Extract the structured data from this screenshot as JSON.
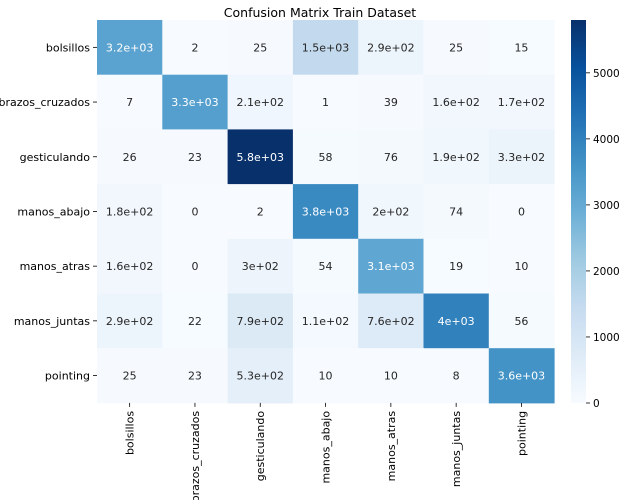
{
  "chart_data": {
    "type": "heatmap",
    "title": "Confusion Matrix Train Dataset",
    "rows": [
      "bolsillos",
      "brazos_cruzados",
      "gesticulando",
      "manos_abajo",
      "manos_atras",
      "manos_juntas",
      "pointing"
    ],
    "cols": [
      "bolsillos",
      "brazos_cruzados",
      "gesticulando",
      "manos_abajo",
      "manos_atras",
      "manos_juntas",
      "pointing"
    ],
    "values": [
      [
        3200,
        2,
        25,
        1500,
        290,
        25,
        15
      ],
      [
        7,
        3300,
        210,
        1,
        39,
        160,
        170
      ],
      [
        26,
        23,
        5800,
        58,
        76,
        190,
        330
      ],
      [
        180,
        0,
        2,
        3800,
        200,
        74,
        0
      ],
      [
        160,
        0,
        300,
        54,
        3100,
        19,
        10
      ],
      [
        290,
        22,
        790,
        110,
        760,
        4000,
        56
      ],
      [
        25,
        23,
        530,
        10,
        10,
        8,
        3600
      ]
    ],
    "labels": [
      [
        "3.2e+03",
        "2",
        "25",
        "1.5e+03",
        "2.9e+02",
        "25",
        "15"
      ],
      [
        "7",
        "3.3e+03",
        "2.1e+02",
        "1",
        "39",
        "1.6e+02",
        "1.7e+02"
      ],
      [
        "26",
        "23",
        "5.8e+03",
        "58",
        "76",
        "1.9e+02",
        "3.3e+02"
      ],
      [
        "1.8e+02",
        "0",
        "2",
        "3.8e+03",
        "2e+02",
        "74",
        "0"
      ],
      [
        "1.6e+02",
        "0",
        "3e+02",
        "54",
        "3.1e+03",
        "19",
        "10"
      ],
      [
        "2.9e+02",
        "22",
        "7.9e+02",
        "1.1e+02",
        "7.6e+02",
        "4e+03",
        "56"
      ],
      [
        "25",
        "23",
        "5.3e+02",
        "10",
        "10",
        "8",
        "3.6e+03"
      ]
    ],
    "colorbar": {
      "min": 0,
      "max": 5800,
      "ticks": [
        0,
        1000,
        2000,
        3000,
        4000,
        5000
      ],
      "colormap": "Blues"
    }
  }
}
